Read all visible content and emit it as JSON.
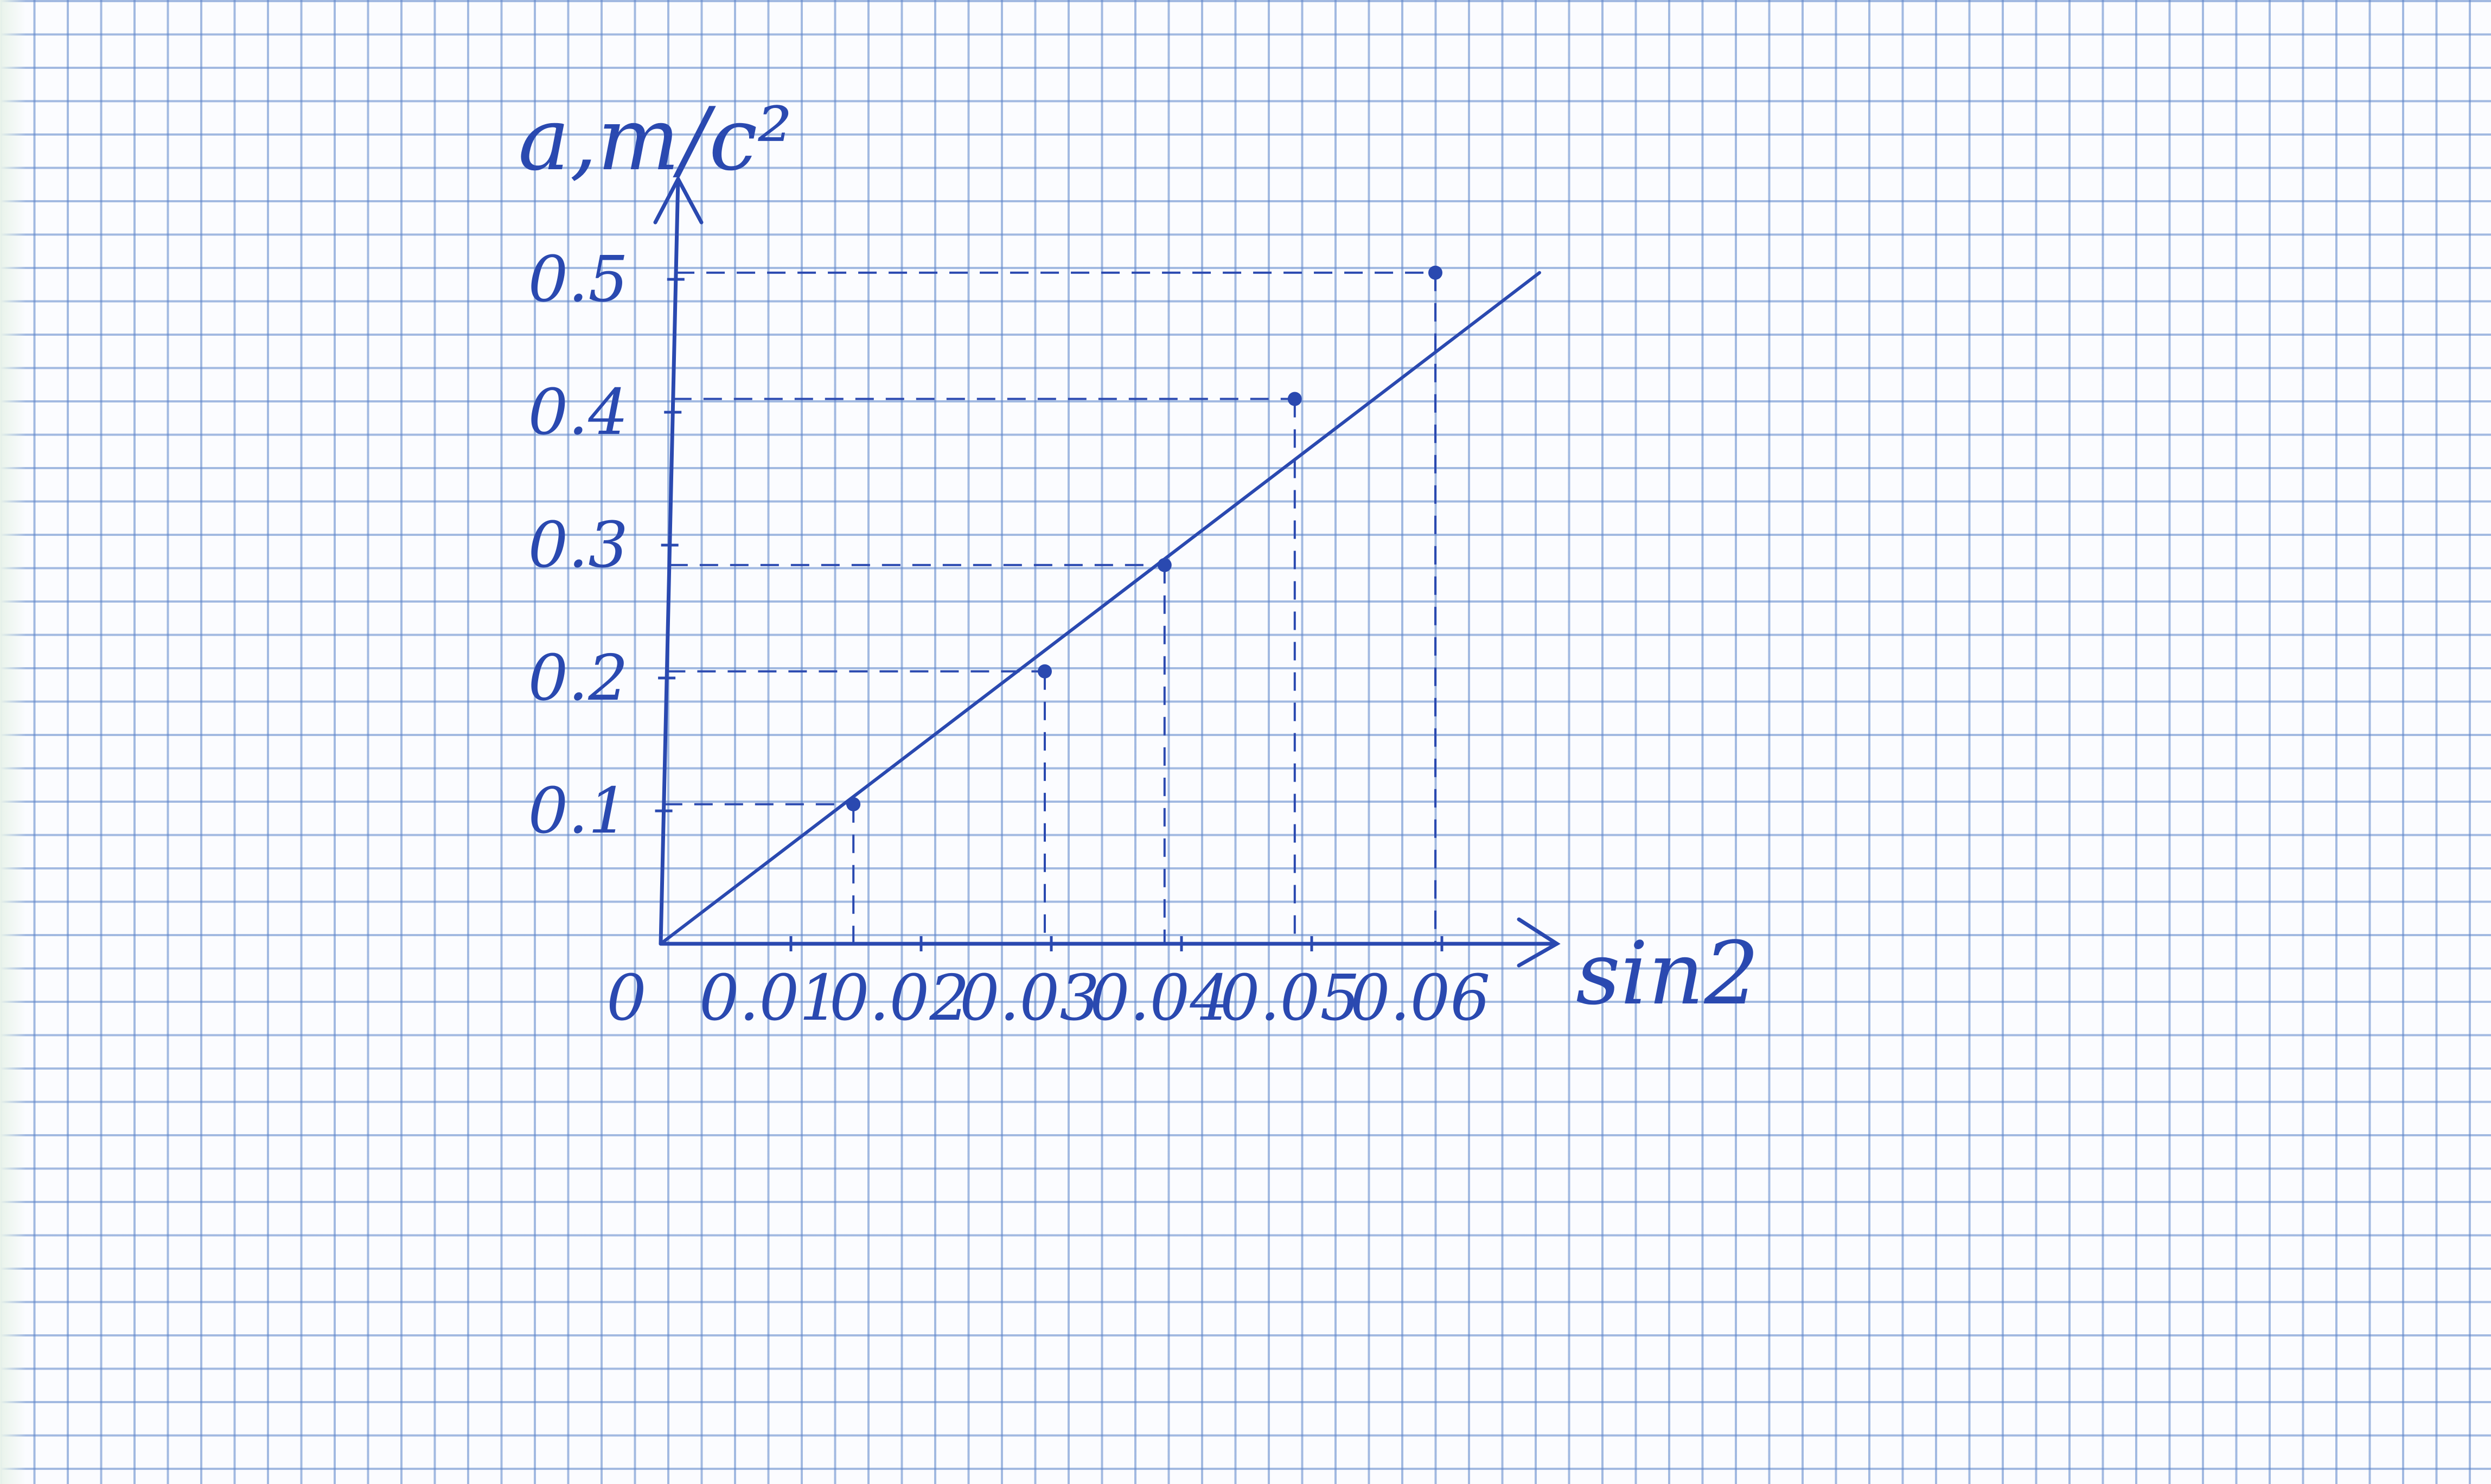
{
  "colors": {
    "ink": "#2a49b0",
    "grid": "#7f9fd6",
    "paper": "#fbfcff"
  },
  "chart_data": {
    "type": "scatter",
    "xlabel": "sin2",
    "ylabel": "a,m/c²",
    "origin_label": "0",
    "xlim": [
      0,
      0.066
    ],
    "ylim": [
      0,
      0.55
    ],
    "x_ticks": [
      {
        "value": 0.01,
        "label": "0.01"
      },
      {
        "value": 0.02,
        "label": "0.02"
      },
      {
        "value": 0.03,
        "label": "0.03"
      },
      {
        "value": 0.04,
        "label": "0.04"
      },
      {
        "value": 0.05,
        "label": "0.05"
      },
      {
        "value": 0.06,
        "label": "0.06"
      }
    ],
    "y_ticks": [
      {
        "value": 0.1,
        "label": "0.1"
      },
      {
        "value": 0.2,
        "label": "0.2"
      },
      {
        "value": 0.3,
        "label": "0.3"
      },
      {
        "value": 0.4,
        "label": "0.4"
      },
      {
        "value": 0.5,
        "label": "0.5"
      }
    ],
    "points": [
      {
        "x": 0.0148,
        "y": 0.105
      },
      {
        "x": 0.0295,
        "y": 0.205
      },
      {
        "x": 0.0387,
        "y": 0.285
      },
      {
        "x": 0.0487,
        "y": 0.41
      },
      {
        "x": 0.0595,
        "y": 0.505
      }
    ],
    "fit_line": {
      "x": [
        0,
        0.0675
      ],
      "y": [
        0,
        0.505
      ]
    },
    "grid": true,
    "guide_lines": "dashed"
  }
}
